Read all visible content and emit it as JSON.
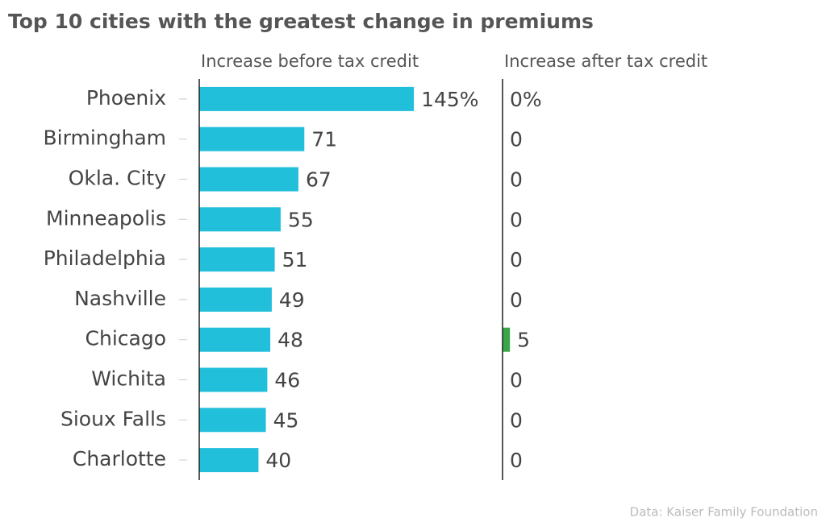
{
  "chart_data": {
    "type": "bar",
    "orientation": "horizontal",
    "title": "Top 10 cities with the greatest change in premiums",
    "source": "Data: Kaiser Family Foundation",
    "categories": [
      "Phoenix",
      "Birmingham",
      "Okla. City",
      "Minneapolis",
      "Philadelphia",
      "Nashville",
      "Chicago",
      "Wichita",
      "Sioux Falls",
      "Charlotte"
    ],
    "xlim": [
      0,
      200
    ],
    "series": [
      {
        "name": "Increase before tax credit",
        "color": "#22bfdb",
        "values": [
          145,
          71,
          67,
          55,
          51,
          49,
          48,
          46,
          45,
          40
        ],
        "value_labels": [
          "145%",
          "71",
          "67",
          "55",
          "51",
          "49",
          "48",
          "46",
          "45",
          "40"
        ]
      },
      {
        "name": "Increase after tax credit",
        "color": "#3aa64a",
        "values": [
          0,
          0,
          0,
          0,
          0,
          0,
          5,
          0,
          0,
          0
        ],
        "value_labels": [
          "0%",
          "0",
          "0",
          "0",
          "0",
          "0",
          "5",
          "0",
          "0",
          "0"
        ]
      }
    ]
  }
}
